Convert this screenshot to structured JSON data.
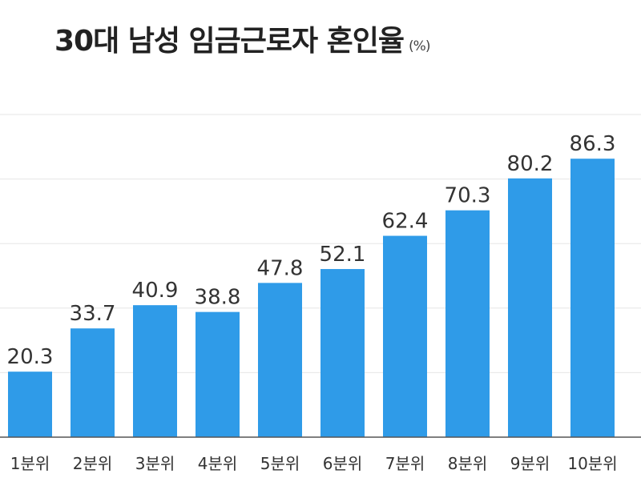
{
  "chart_data": {
    "type": "bar",
    "title": "30대 남성 임금근로자 혼인율",
    "unit": "(%)",
    "xlabel": "",
    "ylabel": "",
    "categories": [
      "1분위",
      "2분위",
      "3분위",
      "4분위",
      "5분위",
      "6분위",
      "7분위",
      "8분위",
      "9분위",
      "10분위"
    ],
    "values": [
      20.3,
      33.7,
      40.9,
      38.8,
      47.8,
      52.1,
      62.4,
      70.3,
      80.2,
      86.3
    ],
    "value_labels": [
      "20.3",
      "33.7",
      "40.9",
      "38.8",
      "47.8",
      "52.1",
      "62.4",
      "70.3",
      "80.2",
      "86.3"
    ],
    "ylim": [
      0,
      100
    ],
    "gridlines": [
      20,
      40,
      60,
      80,
      100
    ],
    "grid": true,
    "colors": {
      "bar": "#2f9be8",
      "grid": "#e6e6e6",
      "axis": "#555555"
    }
  }
}
